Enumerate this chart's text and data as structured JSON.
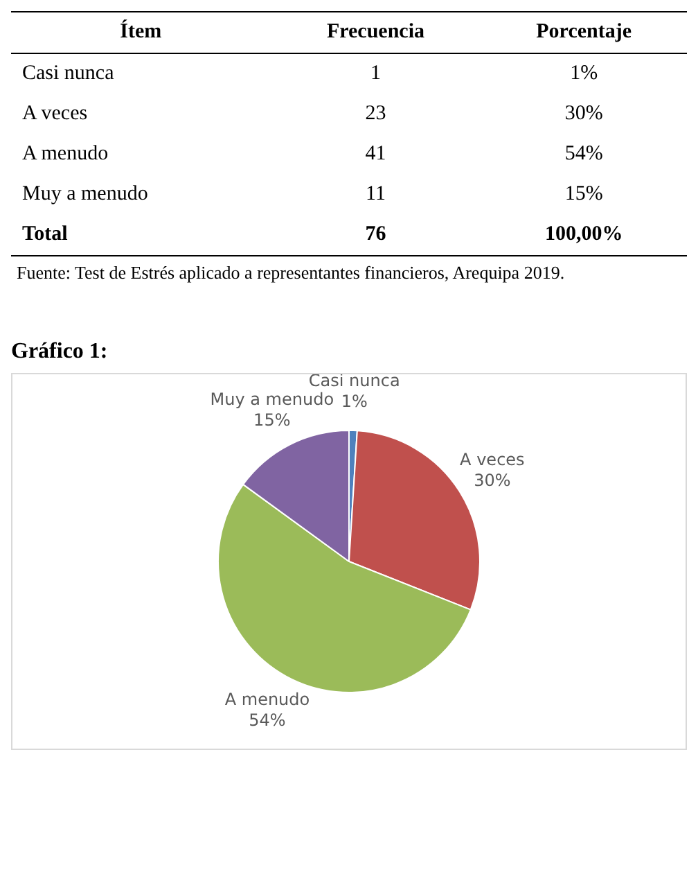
{
  "chart_data": {
    "type": "pie",
    "title": "Gráfico 1:",
    "categories": [
      "Casi nunca",
      "A veces",
      "A menudo",
      "Muy a menudo"
    ],
    "values": [
      1,
      30,
      54,
      15
    ],
    "value_labels": [
      "1%",
      "30%",
      "54%",
      "15%"
    ],
    "colors": [
      "#4f81bd",
      "#c0504d",
      "#9bbb59",
      "#8064a2"
    ],
    "annotations": [
      "Ítem",
      "Frecuencia",
      "Porcentaje",
      "1",
      "23",
      "41",
      "11",
      "Total",
      "76",
      "100,00%",
      "Fuente: Test de Estrés aplicado a representantes financieros, Arequipa 2019."
    ]
  }
}
